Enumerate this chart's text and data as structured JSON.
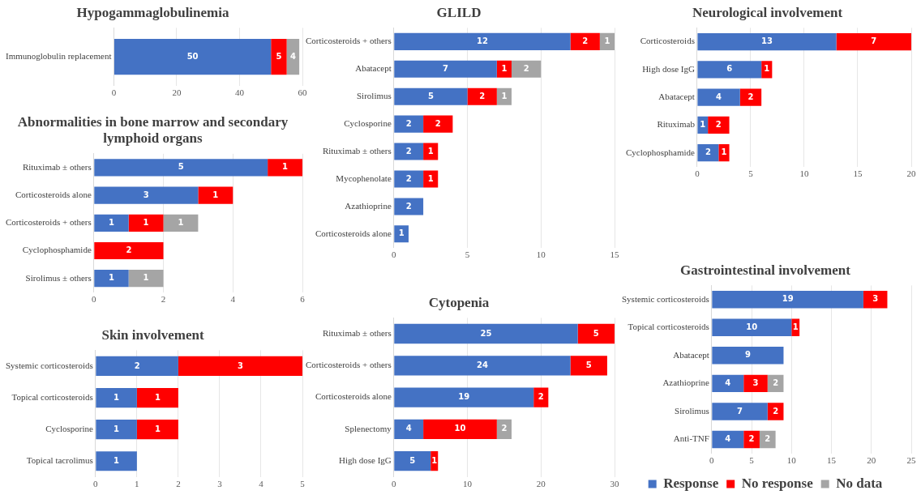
{
  "chart_data": [
    {
      "type": "bar",
      "orientation": "horizontal",
      "stacked": true,
      "title": "Hypogammaglobulinemia",
      "categories": [
        "Immunoglobulin replacement"
      ],
      "series": [
        {
          "color": "#4472c4",
          "values": [
            50
          ]
        },
        {
          "color": "#ff0000",
          "values": [
            5
          ]
        },
        {
          "color": "#a5a5a5",
          "values": [
            4
          ]
        }
      ],
      "xlim": [
        0,
        60
      ],
      "xticks": [
        0,
        20,
        40,
        60
      ],
      "grid": "x",
      "legend": false,
      "data_labels": true
    },
    {
      "type": "bar",
      "orientation": "horizontal",
      "stacked": true,
      "title": "GLILD",
      "categories": [
        "Corticosteroids + others",
        "Abatacept",
        "Sirolimus",
        "Cyclosporine",
        "Rituximab ± others",
        "Mycophenolate",
        "Azathioprine",
        "Corticosteroids alone"
      ],
      "series": [
        {
          "color": "#4472c4",
          "values": [
            12,
            7,
            5,
            2,
            2,
            2,
            2,
            1
          ]
        },
        {
          "color": "#ff0000",
          "values": [
            2,
            1,
            2,
            2,
            1,
            1,
            null,
            null
          ]
        },
        {
          "color": "#a5a5a5",
          "values": [
            1,
            2,
            1,
            null,
            null,
            null,
            null,
            null
          ]
        }
      ],
      "xlim": [
        0,
        15
      ],
      "xticks": [
        0,
        5,
        10,
        15
      ],
      "grid": "x",
      "legend": false,
      "data_labels": true
    },
    {
      "type": "bar",
      "orientation": "horizontal",
      "stacked": true,
      "title": "Neurological involvement",
      "categories": [
        "Corticosteroids",
        "High dose IgG",
        "Abatacept",
        "Rituximab",
        "Cyclophosphamide"
      ],
      "series": [
        {
          "color": "#4472c4",
          "values": [
            13,
            6,
            4,
            1,
            2
          ]
        },
        {
          "color": "#ff0000",
          "values": [
            7,
            1,
            2,
            2,
            1
          ]
        }
      ],
      "xlim": [
        0,
        20
      ],
      "xticks": [
        0,
        5,
        10,
        15,
        20
      ],
      "grid": "x",
      "legend": false,
      "data_labels": true
    },
    {
      "type": "bar",
      "orientation": "horizontal",
      "stacked": true,
      "title": "Abnormalities in bone marrow and secondary lymphoid organs",
      "categories": [
        "Rituximab ± others",
        "Corticosteroids alone",
        "Corticosteroids + others",
        "Cyclophosphamide",
        "Sirolimus ± others"
      ],
      "series": [
        {
          "color": "#4472c4",
          "values": [
            5,
            3,
            1,
            null,
            1
          ]
        },
        {
          "color": "#ff0000",
          "values": [
            1,
            1,
            1,
            2,
            null
          ]
        },
        {
          "color": "#a5a5a5",
          "values": [
            null,
            null,
            1,
            null,
            1
          ]
        }
      ],
      "xlim": [
        0,
        6
      ],
      "xticks": [
        0,
        2,
        4,
        6
      ],
      "grid": "x",
      "legend": false,
      "data_labels": true
    },
    {
      "type": "bar",
      "orientation": "horizontal",
      "stacked": true,
      "title": "Gastrointestinal involvement",
      "categories": [
        "Systemic corticosteroids",
        "Topical corticosteroids",
        "Abatacept",
        "Azathioprine",
        "Sirolimus",
        "Anti-TNF"
      ],
      "series": [
        {
          "name": "Response",
          "color": "#4472c4",
          "values": [
            19,
            10,
            9,
            4,
            7,
            4
          ]
        },
        {
          "name": "No response",
          "color": "#ff0000",
          "values": [
            3,
            1,
            null,
            3,
            2,
            2
          ]
        },
        {
          "name": "No data",
          "color": "#a5a5a5",
          "values": [
            null,
            null,
            null,
            2,
            null,
            2
          ]
        }
      ],
      "xlim": [
        0,
        25
      ],
      "xticks": [
        0,
        5,
        10,
        15,
        20,
        25
      ],
      "grid": "x",
      "legend": "bottom",
      "data_labels": true
    },
    {
      "type": "bar",
      "orientation": "horizontal",
      "stacked": true,
      "title": "Cytopenia",
      "categories": [
        "Rituximab ± others",
        "Corticosteroids + others",
        "Corticosteroids alone",
        "Splenectomy",
        "High dose IgG"
      ],
      "series": [
        {
          "color": "#4472c4",
          "values": [
            25,
            24,
            19,
            4,
            5
          ]
        },
        {
          "color": "#ff0000",
          "values": [
            5,
            5,
            2,
            10,
            1
          ]
        },
        {
          "color": "#a5a5a5",
          "values": [
            null,
            null,
            null,
            2,
            null
          ]
        }
      ],
      "xlim": [
        0,
        30
      ],
      "xticks": [
        0,
        10,
        20,
        30
      ],
      "grid": "x",
      "legend": false,
      "data_labels": true
    },
    {
      "type": "bar",
      "orientation": "horizontal",
      "stacked": true,
      "title": "Skin involvement",
      "categories": [
        "Systemic corticosteroids",
        "Topical corticosteroids",
        "Cyclosporine",
        "Topical tacrolimus"
      ],
      "series": [
        {
          "color": "#4472c4",
          "values": [
            2,
            1,
            1,
            1
          ]
        },
        {
          "color": "#ff0000",
          "values": [
            3,
            1,
            1,
            null
          ]
        }
      ],
      "xlim": [
        0,
        5
      ],
      "xticks": [
        0,
        1,
        2,
        3,
        4,
        5
      ],
      "grid": "x",
      "legend": false,
      "data_labels": true
    }
  ]
}
